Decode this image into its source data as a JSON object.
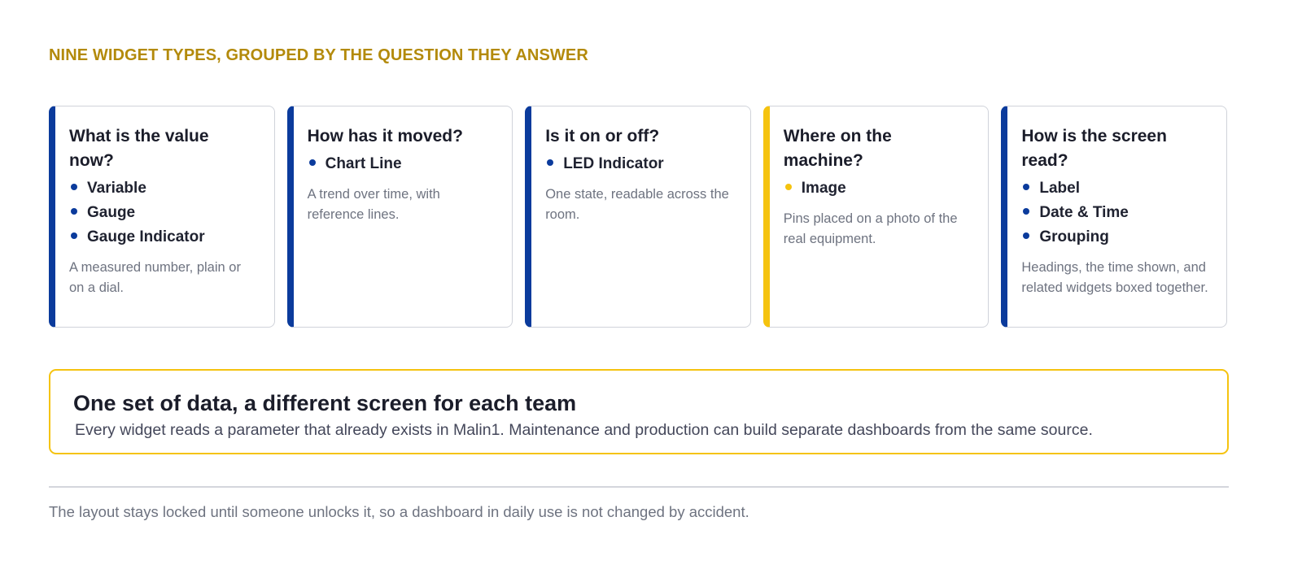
{
  "header": {
    "title": "NINE WIDGET TYPES, GROUPED BY THE QUESTION THEY ANSWER"
  },
  "cards": [
    {
      "question": "What is the value now?",
      "accent": "#0b3b9c",
      "items": [
        "Variable",
        "Gauge",
        "Gauge Indicator"
      ],
      "description": "A measured number, plain or on a dial."
    },
    {
      "question": "How has it moved?",
      "accent": "#0b3b9c",
      "items": [
        "Chart Line"
      ],
      "description": "A trend over time, with reference lines."
    },
    {
      "question": "Is it on or off?",
      "accent": "#0b3b9c",
      "items": [
        "LED Indicator"
      ],
      "description": "One state, readable across the room."
    },
    {
      "question": "Where on the machine?",
      "accent": "#f5c30f",
      "items": [
        "Image"
      ],
      "description": "Pins placed on a photo of the real equipment."
    },
    {
      "question": "How is the screen read?",
      "accent": "#0b3b9c",
      "items": [
        "Label",
        "Date & Time",
        "Grouping"
      ],
      "description": "Headings, the time shown, and related widgets boxed together."
    }
  ],
  "callout": {
    "title": "One set of data, a different screen for each team",
    "text": "Every widget reads a parameter that already exists in Malin1. Maintenance and production can build separate dashboards from the same source."
  },
  "footer": {
    "text": "The layout stays locked until someone unlocks it, so a dashboard in daily use is not changed by accident."
  }
}
